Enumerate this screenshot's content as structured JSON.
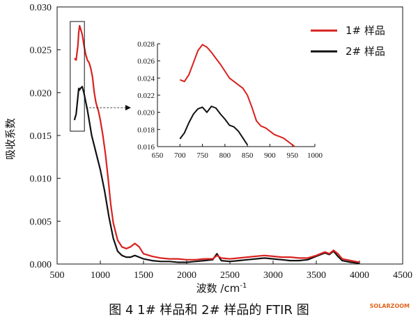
{
  "chart_data": {
    "type": "line",
    "xlabel": "波数 /cm",
    "xlabel_sup": "-1",
    "ylabel": "吸收系数",
    "xlim": [
      500,
      4500
    ],
    "ylim": [
      0.0,
      0.03
    ],
    "x_ticks": [
      "500",
      "1000",
      "1500",
      "2000",
      "2500",
      "3000",
      "3500",
      "4000",
      "4500"
    ],
    "y_ticks": [
      "0.000",
      "0.005",
      "0.010",
      "0.015",
      "0.020",
      "0.025",
      "0.030"
    ],
    "legend_position": "top-right",
    "series": [
      {
        "name": "1# 样品",
        "color": "#d9211e",
        "x": [
          700,
          720,
          740,
          750,
          760,
          770,
          790,
          810,
          830,
          850,
          870,
          890,
          910,
          930,
          950,
          980,
          1000,
          1030,
          1060,
          1090,
          1120,
          1150,
          1200,
          1250,
          1300,
          1350,
          1400,
          1450,
          1500,
          1600,
          1700,
          1800,
          1900,
          2000,
          2100,
          2200,
          2300,
          2350,
          2400,
          2500,
          2600,
          2700,
          2800,
          2900,
          3000,
          3100,
          3200,
          3300,
          3400,
          3500,
          3600,
          3650,
          3700,
          3750,
          3800,
          3900,
          4000
        ],
        "y": [
          0.024,
          0.0238,
          0.0255,
          0.027,
          0.0278,
          0.0275,
          0.0268,
          0.0256,
          0.0245,
          0.0238,
          0.0235,
          0.0228,
          0.0218,
          0.02,
          0.0188,
          0.0178,
          0.0168,
          0.015,
          0.0128,
          0.01,
          0.007,
          0.0048,
          0.0028,
          0.002,
          0.0018,
          0.002,
          0.0024,
          0.002,
          0.0012,
          0.0009,
          0.0007,
          0.0006,
          0.0006,
          0.0005,
          0.0005,
          0.0006,
          0.0006,
          0.001,
          0.0007,
          0.0006,
          0.0007,
          0.0008,
          0.0009,
          0.001,
          0.0009,
          0.0008,
          0.0008,
          0.0007,
          0.0007,
          0.001,
          0.0014,
          0.0012,
          0.0016,
          0.0012,
          0.0006,
          0.0004,
          0.0002
        ]
      },
      {
        "name": "2# 样品",
        "color": "#111111",
        "x": [
          700,
          720,
          740,
          750,
          760,
          770,
          790,
          810,
          830,
          850,
          870,
          900,
          950,
          1000,
          1050,
          1100,
          1150,
          1200,
          1250,
          1300,
          1350,
          1400,
          1450,
          1500,
          1600,
          1700,
          1800,
          1900,
          2000,
          2100,
          2200,
          2300,
          2350,
          2400,
          2500,
          2600,
          2700,
          2800,
          2900,
          3000,
          3100,
          3200,
          3300,
          3400,
          3500,
          3600,
          3650,
          3700,
          3750,
          3800,
          3900,
          4000
        ],
        "y": [
          0.0168,
          0.0175,
          0.0195,
          0.0205,
          0.0203,
          0.0205,
          0.0207,
          0.02,
          0.019,
          0.018,
          0.0168,
          0.015,
          0.013,
          0.011,
          0.0085,
          0.0055,
          0.003,
          0.0015,
          0.001,
          0.0008,
          0.0008,
          0.001,
          0.0008,
          0.0006,
          0.0004,
          0.0003,
          0.0003,
          0.0002,
          0.0002,
          0.0003,
          0.0004,
          0.0005,
          0.0012,
          0.0004,
          0.0003,
          0.0004,
          0.0005,
          0.0006,
          0.0007,
          0.0006,
          0.0005,
          0.0004,
          0.0004,
          0.0005,
          0.0009,
          0.0013,
          0.0011,
          0.0015,
          0.0009,
          0.0004,
          0.0002,
          0.0001
        ]
      }
    ],
    "inset": {
      "xlim": [
        650,
        1000
      ],
      "ylim": [
        0.016,
        0.028
      ],
      "x_ticks": [
        "650",
        "700",
        "750",
        "800",
        "850",
        "900",
        "950",
        "1000"
      ],
      "y_ticks": [
        "0.016",
        "0.018",
        "0.020",
        "0.022",
        "0.024",
        "0.026",
        "0.028"
      ],
      "source_region_x": [
        700,
        800
      ],
      "source_region_y": [
        0.0155,
        0.0283
      ],
      "series": [
        {
          "name": "1# 样品",
          "color": "#d9211e",
          "x": [
            700,
            710,
            720,
            730,
            740,
            750,
            760,
            770,
            780,
            790,
            800,
            810,
            820,
            830,
            840,
            850,
            860,
            870,
            880,
            890,
            900,
            910,
            920,
            930,
            940,
            950,
            955
          ],
          "y": [
            0.0238,
            0.0236,
            0.0244,
            0.0258,
            0.0272,
            0.0279,
            0.0276,
            0.027,
            0.0263,
            0.0256,
            0.0248,
            0.024,
            0.0236,
            0.0232,
            0.0228,
            0.022,
            0.0206,
            0.019,
            0.0184,
            0.0182,
            0.0178,
            0.0174,
            0.0172,
            0.017,
            0.0166,
            0.0162,
            0.016
          ]
        },
        {
          "name": "2# 样品",
          "color": "#111111",
          "x": [
            700,
            710,
            720,
            730,
            740,
            750,
            760,
            770,
            780,
            790,
            800,
            810,
            820,
            830,
            840,
            850
          ],
          "y": [
            0.0169,
            0.0176,
            0.0188,
            0.0198,
            0.0204,
            0.0206,
            0.02,
            0.0207,
            0.0205,
            0.0198,
            0.0192,
            0.0185,
            0.0183,
            0.0178,
            0.017,
            0.0162
          ]
        }
      ]
    }
  },
  "caption": "图 4   1# 样品和 2# 样品的 FTIR 图",
  "watermark": "SOLARZOOM"
}
